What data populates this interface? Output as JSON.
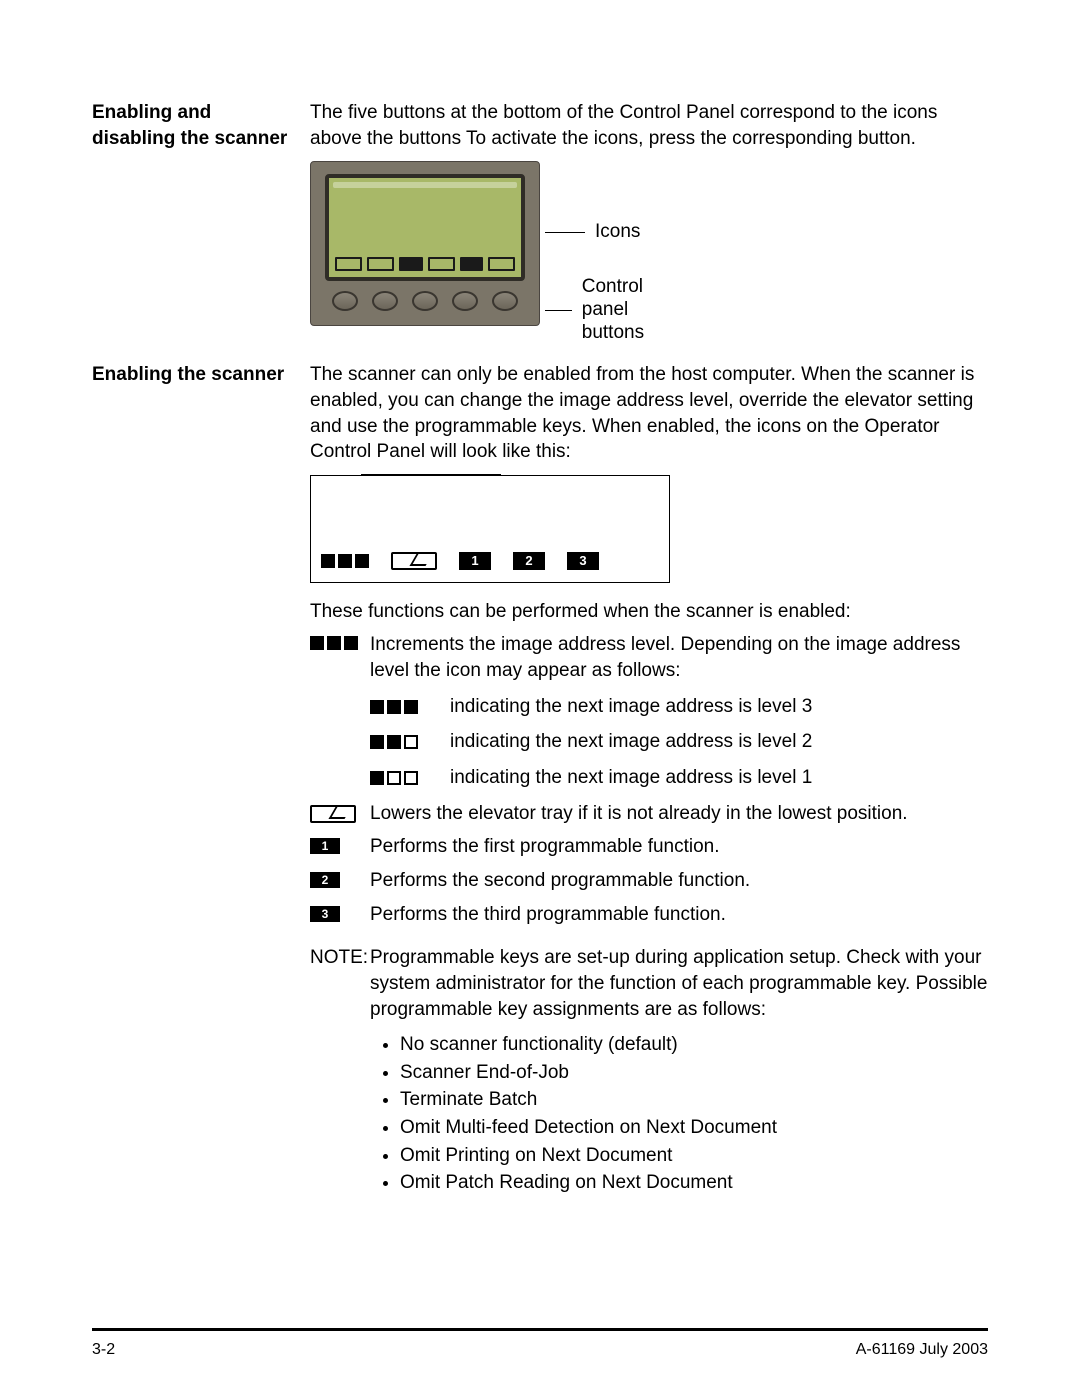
{
  "headings": {
    "section1": "Enabling and disabling the scanner",
    "section2": "Enabling the scanner"
  },
  "paragraphs": {
    "intro": "The five buttons at the bottom of the Control Panel correspond to the icons above the buttons To activate the icons, press the corresponding button.",
    "enable": "The scanner can only be enabled from the host computer. When the scanner is enabled, you can change the image address level, override the elevator setting and use the programmable keys. When enabled, the icons on the Operator Control Panel will look like this:",
    "functions_lead": "These functions can be performed when the scanner is enabled:",
    "increment": "Increments the image address level. Depending on the image address level the icon may appear as follows:",
    "level3": "indicating the next image address is level 3",
    "level2": "indicating the next image address is level 2",
    "level1": "indicating the next image address is level 1",
    "elevator": "Lowers the elevator tray if it is not already in the lowest position.",
    "prog1": "Performs the first programmable function.",
    "prog2": "Performs the second programmable function.",
    "prog3": "Performs the third programmable function.",
    "note_label": "NOTE:",
    "note_body": "Programmable keys are set-up during application setup. Check with your system administrator for the function of each programmable key.  Possible programmable key assignments are as follows:"
  },
  "panel_labels": {
    "icons": "Icons",
    "buttons_line1": "Control panel",
    "buttons_line2": "buttons"
  },
  "num_icons": {
    "n1": "1",
    "n2": "2",
    "n3": "3"
  },
  "assignments": [
    "No scanner functionality (default)",
    "Scanner End-of-Job",
    "Terminate Batch",
    "Omit Multi-feed Detection on Next Document",
    "Omit Printing on Next Document",
    "Omit Patch Reading on Next Document"
  ],
  "footer": {
    "left": "3-2",
    "right": "A-61169  July 2003"
  },
  "colors": {
    "text": "#000000",
    "background": "#ffffff",
    "panel_body": "#7b7568",
    "panel_screen": "#a8b868",
    "panel_frame": "#2f2c26"
  },
  "typography": {
    "body_fontsize_pt": 14,
    "heading_weight": "bold"
  }
}
